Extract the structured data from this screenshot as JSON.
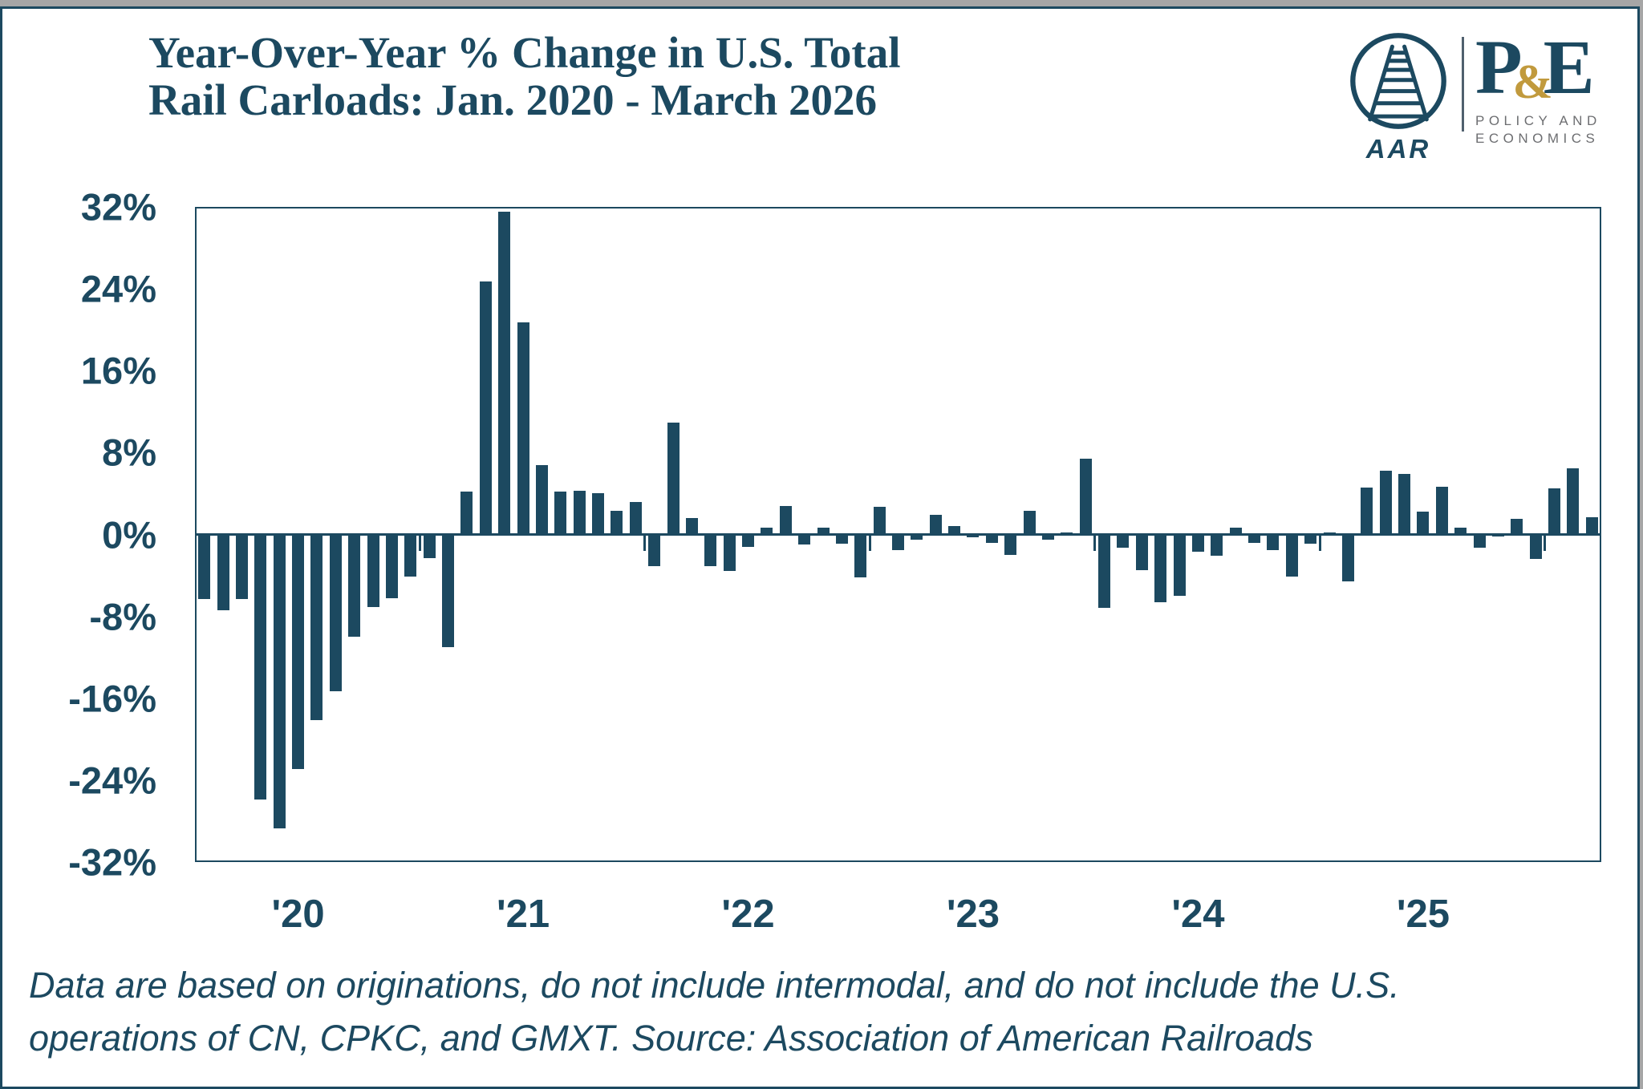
{
  "header": {
    "title_line1": "Year-Over-Year % Change in U.S. Total",
    "title_line2": "Rail Carloads: Jan. 2020 - March 2026",
    "logo": {
      "aar_label": "AAR",
      "pe_p": "P",
      "pe_amp": "&",
      "pe_e": "E",
      "pe_sub_line1": "POLICY AND",
      "pe_sub_line2": "ECONOMICS"
    }
  },
  "chart_data": {
    "type": "bar",
    "title": "Year-Over-Year % Change in U.S. Total Rail Carloads: Jan. 2020 - March 2026",
    "xlabel": "",
    "ylabel": "Year-over-year percent change",
    "ylim": [
      -32,
      32
    ],
    "grid": false,
    "legend": "none",
    "bar_color": "#1c4960",
    "y_tick_values": [
      32,
      24,
      16,
      8,
      0,
      -8,
      -16,
      -24,
      -32
    ],
    "y_tick_labels": [
      "32%",
      "24%",
      "16%",
      "8%",
      "0%",
      "-8%",
      "-16%",
      "-24%",
      "-32%"
    ],
    "x_year_labels": [
      "'20",
      "'21",
      "'22",
      "'23",
      "'24",
      "'25"
    ],
    "year_label_month_index": [
      5,
      17,
      29,
      41,
      53,
      65
    ],
    "year_boundary_tick_index": [
      12,
      24,
      36,
      48,
      60,
      72
    ],
    "months": [
      "Jan 2020",
      "Feb 2020",
      "Mar 2020",
      "Apr 2020",
      "May 2020",
      "Jun 2020",
      "Jul 2020",
      "Aug 2020",
      "Sep 2020",
      "Oct 2020",
      "Nov 2020",
      "Dec 2020",
      "Jan 2021",
      "Feb 2021",
      "Mar 2021",
      "Apr 2021",
      "May 2021",
      "Jun 2021",
      "Jul 2021",
      "Aug 2021",
      "Sep 2021",
      "Oct 2021",
      "Nov 2021",
      "Dec 2021",
      "Jan 2022",
      "Feb 2022",
      "Mar 2022",
      "Apr 2022",
      "May 2022",
      "Jun 2022",
      "Jul 2022",
      "Aug 2022",
      "Sep 2022",
      "Oct 2022",
      "Nov 2022",
      "Dec 2022",
      "Jan 2023",
      "Feb 2023",
      "Mar 2023",
      "Apr 2023",
      "May 2023",
      "Jun 2023",
      "Jul 2023",
      "Aug 2023",
      "Sep 2023",
      "Oct 2023",
      "Nov 2023",
      "Dec 2023",
      "Jan 2024",
      "Feb 2024",
      "Mar 2024",
      "Apr 2024",
      "May 2024",
      "Jun 2024",
      "Jul 2024",
      "Aug 2024",
      "Sep 2024",
      "Oct 2024",
      "Nov 2024",
      "Dec 2024",
      "Jan 2025",
      "Feb 2025",
      "Mar 2025",
      "Apr 2025",
      "May 2025",
      "Jun 2025",
      "Jul 2025",
      "Aug 2025",
      "Sep 2025",
      "Oct 2025",
      "Nov 2025",
      "Dec 2025",
      "Jan 2026",
      "Feb 2026",
      "Mar 2026"
    ],
    "values": [
      -6.3,
      -7.4,
      -6.3,
      -25.9,
      -28.7,
      -22.9,
      -18.1,
      -15.3,
      -10.0,
      -7.1,
      -6.2,
      -4.1,
      -2.3,
      -11.0,
      4.2,
      24.7,
      31.5,
      20.7,
      6.8,
      4.2,
      4.3,
      4.0,
      2.3,
      3.2,
      -3.1,
      10.9,
      1.6,
      -3.1,
      -3.6,
      -1.2,
      0.7,
      2.8,
      -1.0,
      0.7,
      -0.9,
      -4.2,
      2.7,
      -1.5,
      -0.5,
      1.9,
      0.8,
      -0.3,
      -0.8,
      -2.0,
      2.3,
      -0.5,
      0.2,
      7.4,
      -7.2,
      -1.3,
      -3.5,
      -6.6,
      -6.0,
      -1.7,
      -2.1,
      0.7,
      -0.8,
      -1.5,
      -4.1,
      -0.9,
      0.2,
      -4.6,
      4.6,
      6.2,
      5.9,
      2.2,
      4.7,
      0.7,
      -1.3,
      -0.2,
      1.5,
      -2.4,
      4.5,
      6.5,
      1.7
    ]
  },
  "footer": {
    "line1": "Data are based on originations, do not include intermodal, and do not include the U.S.",
    "line2": "operations of CN, CPKC, and GMXT. Source: Association of American Railroads"
  }
}
